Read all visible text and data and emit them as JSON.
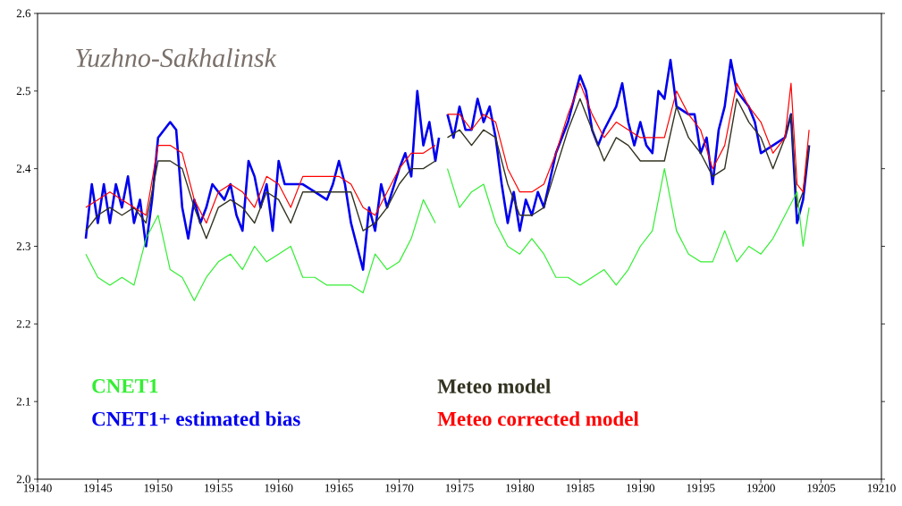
{
  "chart_data": {
    "type": "line",
    "title": "Yuzhno-Sakhalinsk",
    "xlim": [
      19140,
      19210
    ],
    "xticks": [
      19140,
      19145,
      19150,
      19155,
      19160,
      19165,
      19170,
      19175,
      19180,
      19185,
      19190,
      19195,
      19200,
      19205,
      19210
    ],
    "ylim": [
      2.0,
      2.6
    ],
    "yticks": [
      {
        "value": 2.0,
        "label": "2.0"
      },
      {
        "value": 2.1,
        "label": "2.1"
      },
      {
        "value": 2.2,
        "label": "2.2"
      },
      {
        "value": 2.3,
        "label": "2.3"
      },
      {
        "value": 2.4,
        "label": "2.4"
      },
      {
        "value": 2.5,
        "label": "2.5"
      },
      {
        "value": 2.6,
        "label": "2.6"
      }
    ],
    "grid": false,
    "legend": "bottom",
    "marker": "none",
    "line_style": "solid",
    "series": [
      {
        "name": "CNET1",
        "color": "#33ee33",
        "x": [
          19144,
          19145,
          19146,
          19147,
          19148,
          19149,
          19150,
          19151,
          19152,
          19153,
          19154,
          19155,
          19156,
          19157,
          19158,
          19159,
          19160,
          19161,
          19162,
          19163,
          19164,
          19165,
          19166,
          19167,
          19168,
          19169,
          19170,
          19171,
          19172,
          19173,
          19173.5,
          19174,
          19175,
          19176,
          19177,
          19178,
          19179,
          19180,
          19181,
          19182,
          19183,
          19184,
          19185,
          19186,
          19187,
          19188,
          19189,
          19190,
          19191,
          19192,
          19193,
          19194,
          19195,
          19196,
          19197,
          19198,
          19199,
          19200,
          19201,
          19202,
          19203,
          19203.5,
          19204
        ],
        "values": [
          2.29,
          2.26,
          2.25,
          2.26,
          2.25,
          2.31,
          2.34,
          2.27,
          2.26,
          2.23,
          2.26,
          2.28,
          2.29,
          2.27,
          2.3,
          2.28,
          2.29,
          2.3,
          2.26,
          2.26,
          2.25,
          2.25,
          2.25,
          2.24,
          2.29,
          2.27,
          2.28,
          2.31,
          2.36,
          2.33,
          null,
          2.4,
          2.35,
          2.37,
          2.38,
          2.33,
          2.3,
          2.29,
          2.31,
          2.29,
          2.26,
          2.26,
          2.25,
          2.26,
          2.27,
          2.25,
          2.27,
          2.3,
          2.32,
          2.4,
          2.32,
          2.29,
          2.28,
          2.28,
          2.32,
          2.28,
          2.3,
          2.29,
          2.31,
          2.34,
          2.37,
          2.3,
          2.35
        ]
      },
      {
        "name": "CNET1+ estimated bias",
        "color": "#0000ee",
        "x": [
          19144,
          19144.5,
          19145,
          19145.5,
          19146,
          19146.5,
          19147,
          19147.5,
          19148,
          19148.5,
          19149,
          19149.5,
          19150,
          19151,
          19151.5,
          19152,
          19152.5,
          19153,
          19153.5,
          19154,
          19154.5,
          19155,
          19155.5,
          19156,
          19156.5,
          19157,
          19157.5,
          19158,
          19158.5,
          19159,
          19159.5,
          19160,
          19160.5,
          19162,
          19163,
          19164,
          19164.5,
          19165,
          19165.5,
          19166,
          19166.5,
          19167,
          19167.5,
          19168,
          19168.5,
          19169,
          19170,
          19170.5,
          19171,
          19171.5,
          19172,
          19172.5,
          19173,
          19173.3,
          19173.6,
          19174,
          19174.5,
          19175,
          19175.5,
          19176,
          19176.5,
          19177,
          19177.5,
          19178,
          19178.5,
          19179,
          19179.5,
          19180,
          19180.5,
          19181,
          19181.5,
          19182,
          19183,
          19184,
          19185,
          19185.5,
          19186,
          19186.5,
          19187,
          19188,
          19188.5,
          19189,
          19189.5,
          19190,
          19190.5,
          19191,
          19191.5,
          19192,
          19192.5,
          19193,
          19194,
          19194.5,
          19195,
          19195.5,
          19196,
          19196.5,
          19197,
          19197.5,
          19198,
          19199,
          19199.5,
          19200,
          19201,
          19202,
          19202.5,
          19203,
          19203.5,
          19204
        ],
        "values": [
          2.31,
          2.38,
          2.33,
          2.38,
          2.33,
          2.38,
          2.35,
          2.39,
          2.33,
          2.36,
          2.3,
          2.36,
          2.44,
          2.46,
          2.45,
          2.35,
          2.31,
          2.36,
          2.33,
          2.35,
          2.38,
          2.37,
          2.36,
          2.38,
          2.34,
          2.32,
          2.41,
          2.39,
          2.35,
          2.38,
          2.32,
          2.41,
          2.38,
          2.38,
          2.37,
          2.36,
          2.38,
          2.41,
          2.38,
          2.33,
          2.3,
          2.27,
          2.35,
          2.32,
          2.38,
          2.35,
          2.4,
          2.42,
          2.39,
          2.5,
          2.43,
          2.46,
          2.41,
          2.44,
          null,
          2.47,
          2.44,
          2.48,
          2.45,
          2.45,
          2.49,
          2.46,
          2.48,
          2.44,
          2.38,
          2.33,
          2.37,
          2.32,
          2.36,
          2.34,
          2.37,
          2.35,
          2.42,
          2.46,
          2.52,
          2.5,
          2.45,
          2.43,
          2.45,
          2.48,
          2.51,
          2.46,
          2.43,
          2.46,
          2.43,
          2.42,
          2.5,
          2.49,
          2.54,
          2.48,
          2.47,
          2.47,
          2.42,
          2.44,
          2.38,
          2.45,
          2.48,
          2.54,
          2.5,
          2.48,
          2.46,
          2.42,
          2.43,
          2.44,
          2.47,
          2.33,
          2.36,
          2.43
        ]
      },
      {
        "name": "Meteo model",
        "color": "#333322",
        "x": [
          19144,
          19145,
          19146,
          19147,
          19148,
          19149,
          19150,
          19151,
          19152,
          19153,
          19154,
          19155,
          19156,
          19157,
          19158,
          19159,
          19160,
          19161,
          19162,
          19163,
          19164,
          19165,
          19166,
          19167,
          19168,
          19169,
          19170,
          19171,
          19172,
          19173,
          19173.5,
          19174,
          19175,
          19176,
          19177,
          19178,
          19179,
          19180,
          19181,
          19182,
          19183,
          19184,
          19185,
          19186,
          19187,
          19188,
          19189,
          19190,
          19191,
          19192,
          19193,
          19194,
          19195,
          19196,
          19197,
          19198,
          19199,
          19200,
          19201,
          19202,
          19202.5,
          19203,
          19203.5,
          19204
        ],
        "values": [
          2.32,
          2.34,
          2.35,
          2.34,
          2.35,
          2.33,
          2.41,
          2.41,
          2.4,
          2.35,
          2.31,
          2.35,
          2.36,
          2.35,
          2.33,
          2.37,
          2.36,
          2.33,
          2.37,
          2.37,
          2.37,
          2.37,
          2.37,
          2.32,
          2.33,
          2.35,
          2.38,
          2.4,
          2.4,
          2.41,
          null,
          2.44,
          2.45,
          2.43,
          2.45,
          2.44,
          2.38,
          2.34,
          2.34,
          2.35,
          2.4,
          2.45,
          2.49,
          2.45,
          2.41,
          2.44,
          2.43,
          2.41,
          2.41,
          2.41,
          2.48,
          2.44,
          2.42,
          2.39,
          2.4,
          2.49,
          2.46,
          2.44,
          2.4,
          2.44,
          2.47,
          2.35,
          2.37,
          2.43
        ]
      },
      {
        "name": "Meteo corrected model",
        "color": "#ff0000",
        "x": [
          19144,
          19145,
          19146,
          19147,
          19148,
          19149,
          19150,
          19151,
          19152,
          19153,
          19154,
          19155,
          19156,
          19157,
          19158,
          19159,
          19160,
          19161,
          19162,
          19163,
          19164,
          19165,
          19166,
          19167,
          19168,
          19169,
          19170,
          19171,
          19172,
          19173,
          19173.5,
          19174,
          19175,
          19176,
          19177,
          19178,
          19179,
          19180,
          19181,
          19182,
          19183,
          19184,
          19185,
          19186,
          19187,
          19188,
          19189,
          19190,
          19191,
          19192,
          19193,
          19194,
          19195,
          19196,
          19197,
          19198,
          19199,
          19200,
          19201,
          19202,
          19202.5,
          19203,
          19203.5,
          19204
        ],
        "values": [
          2.35,
          2.36,
          2.37,
          2.36,
          2.35,
          2.34,
          2.43,
          2.43,
          2.42,
          2.36,
          2.33,
          2.37,
          2.38,
          2.37,
          2.35,
          2.39,
          2.38,
          2.35,
          2.39,
          2.39,
          2.39,
          2.39,
          2.38,
          2.35,
          2.34,
          2.37,
          2.4,
          2.42,
          2.42,
          2.43,
          null,
          2.47,
          2.47,
          2.45,
          2.47,
          2.46,
          2.4,
          2.37,
          2.37,
          2.38,
          2.42,
          2.47,
          2.51,
          2.47,
          2.44,
          2.46,
          2.45,
          2.44,
          2.44,
          2.44,
          2.5,
          2.47,
          2.45,
          2.4,
          2.43,
          2.51,
          2.48,
          2.46,
          2.42,
          2.44,
          2.51,
          2.38,
          2.37,
          2.45
        ]
      }
    ]
  }
}
